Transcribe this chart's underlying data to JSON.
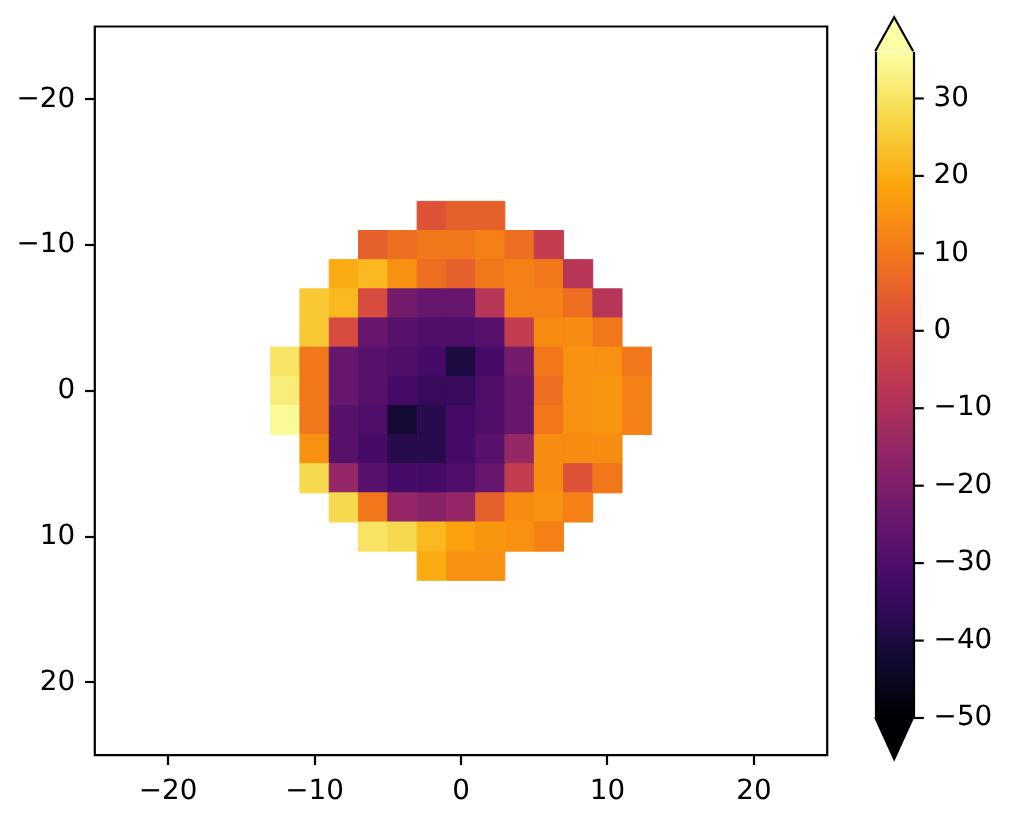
{
  "chart_data": {
    "type": "scatter",
    "marker": "square",
    "x": [
      -2,
      0,
      2,
      -6,
      -4,
      -2,
      0,
      2,
      4,
      6,
      -8,
      -6,
      -4,
      -2,
      0,
      2,
      4,
      6,
      8,
      -10,
      -8,
      -6,
      -4,
      -2,
      0,
      2,
      4,
      6,
      8,
      10,
      -10,
      -8,
      -6,
      -4,
      -2,
      0,
      2,
      4,
      6,
      8,
      10,
      -12,
      -10,
      -8,
      -6,
      -4,
      -2,
      0,
      2,
      4,
      6,
      8,
      10,
      12,
      -12,
      -10,
      -8,
      -6,
      -4,
      -2,
      0,
      2,
      4,
      6,
      8,
      10,
      12,
      -12,
      -10,
      -8,
      -6,
      -4,
      -2,
      0,
      2,
      4,
      6,
      8,
      10,
      12,
      -10,
      -8,
      -6,
      -4,
      -2,
      0,
      2,
      4,
      6,
      8,
      10,
      -10,
      -8,
      -6,
      -4,
      -2,
      0,
      2,
      4,
      6,
      8,
      10,
      -8,
      -6,
      -4,
      -2,
      0,
      2,
      4,
      6,
      8,
      -6,
      -4,
      -2,
      0,
      2,
      4,
      6,
      -2,
      0,
      2
    ],
    "values": [
      -12,
      -12,
      -12,
      -10,
      -10,
      -10,
      -10,
      -10,
      -10,
      -10,
      -8,
      -8,
      -8,
      -8,
      -8,
      -8,
      -8,
      -8,
      -8,
      -6,
      -6,
      -6,
      -6,
      -6,
      -6,
      -6,
      -6,
      -6,
      -6,
      -6,
      -4,
      -4,
      -4,
      -4,
      -4,
      -4,
      -4,
      -4,
      -4,
      -4,
      -4,
      -2,
      -2,
      -2,
      -2,
      -2,
      -2,
      -2,
      -2,
      -2,
      -2,
      -2,
      -2,
      -2,
      0,
      0,
      0,
      0,
      0,
      0,
      0,
      0,
      0,
      0,
      0,
      0,
      0,
      2,
      2,
      2,
      2,
      2,
      2,
      2,
      2,
      2,
      2,
      2,
      2,
      2,
      4,
      4,
      4,
      4,
      4,
      4,
      4,
      4,
      4,
      4,
      4,
      6,
      6,
      6,
      6,
      6,
      6,
      6,
      6,
      6,
      6,
      6,
      8,
      8,
      8,
      8,
      8,
      8,
      8,
      8,
      8,
      10,
      10,
      10,
      10,
      10,
      10,
      10,
      12,
      12,
      12
    ],
    "cvalues": [
      2,
      5,
      5,
      5,
      8,
      10,
      10,
      12,
      8,
      -5,
      20,
      22,
      15,
      8,
      5,
      10,
      12,
      10,
      -8,
      25,
      22,
      0,
      -22,
      -25,
      -25,
      -8,
      12,
      12,
      8,
      -8,
      25,
      0,
      -25,
      -28,
      -30,
      -30,
      -28,
      -5,
      14,
      14,
      10,
      30,
      10,
      -25,
      -28,
      -30,
      -32,
      -40,
      -32,
      -22,
      10,
      15,
      15,
      10,
      32,
      10,
      -25,
      -28,
      -32,
      -35,
      -35,
      -30,
      -25,
      8,
      15,
      16,
      12,
      35,
      10,
      -28,
      -30,
      -42,
      -38,
      -32,
      -30,
      -25,
      10,
      15,
      16,
      12,
      15,
      -28,
      -32,
      -38,
      -38,
      -32,
      -28,
      -15,
      14,
      14,
      14,
      28,
      -15,
      -28,
      -32,
      -32,
      -30,
      -25,
      -5,
      14,
      2,
      10,
      28,
      10,
      -15,
      -18,
      -15,
      5,
      14,
      15,
      12,
      30,
      28,
      22,
      18,
      16,
      15,
      12,
      20,
      15,
      15
    ],
    "xlim": [
      -25,
      25
    ],
    "ylim": [
      25,
      -25
    ],
    "xticks": [
      -20,
      -10,
      0,
      10,
      20
    ],
    "yticks": [
      -20,
      -10,
      0,
      10,
      20
    ],
    "clim": [
      -50,
      36
    ],
    "cticks": [
      -50,
      -40,
      -30,
      -20,
      -10,
      0,
      10,
      20,
      30
    ]
  }
}
